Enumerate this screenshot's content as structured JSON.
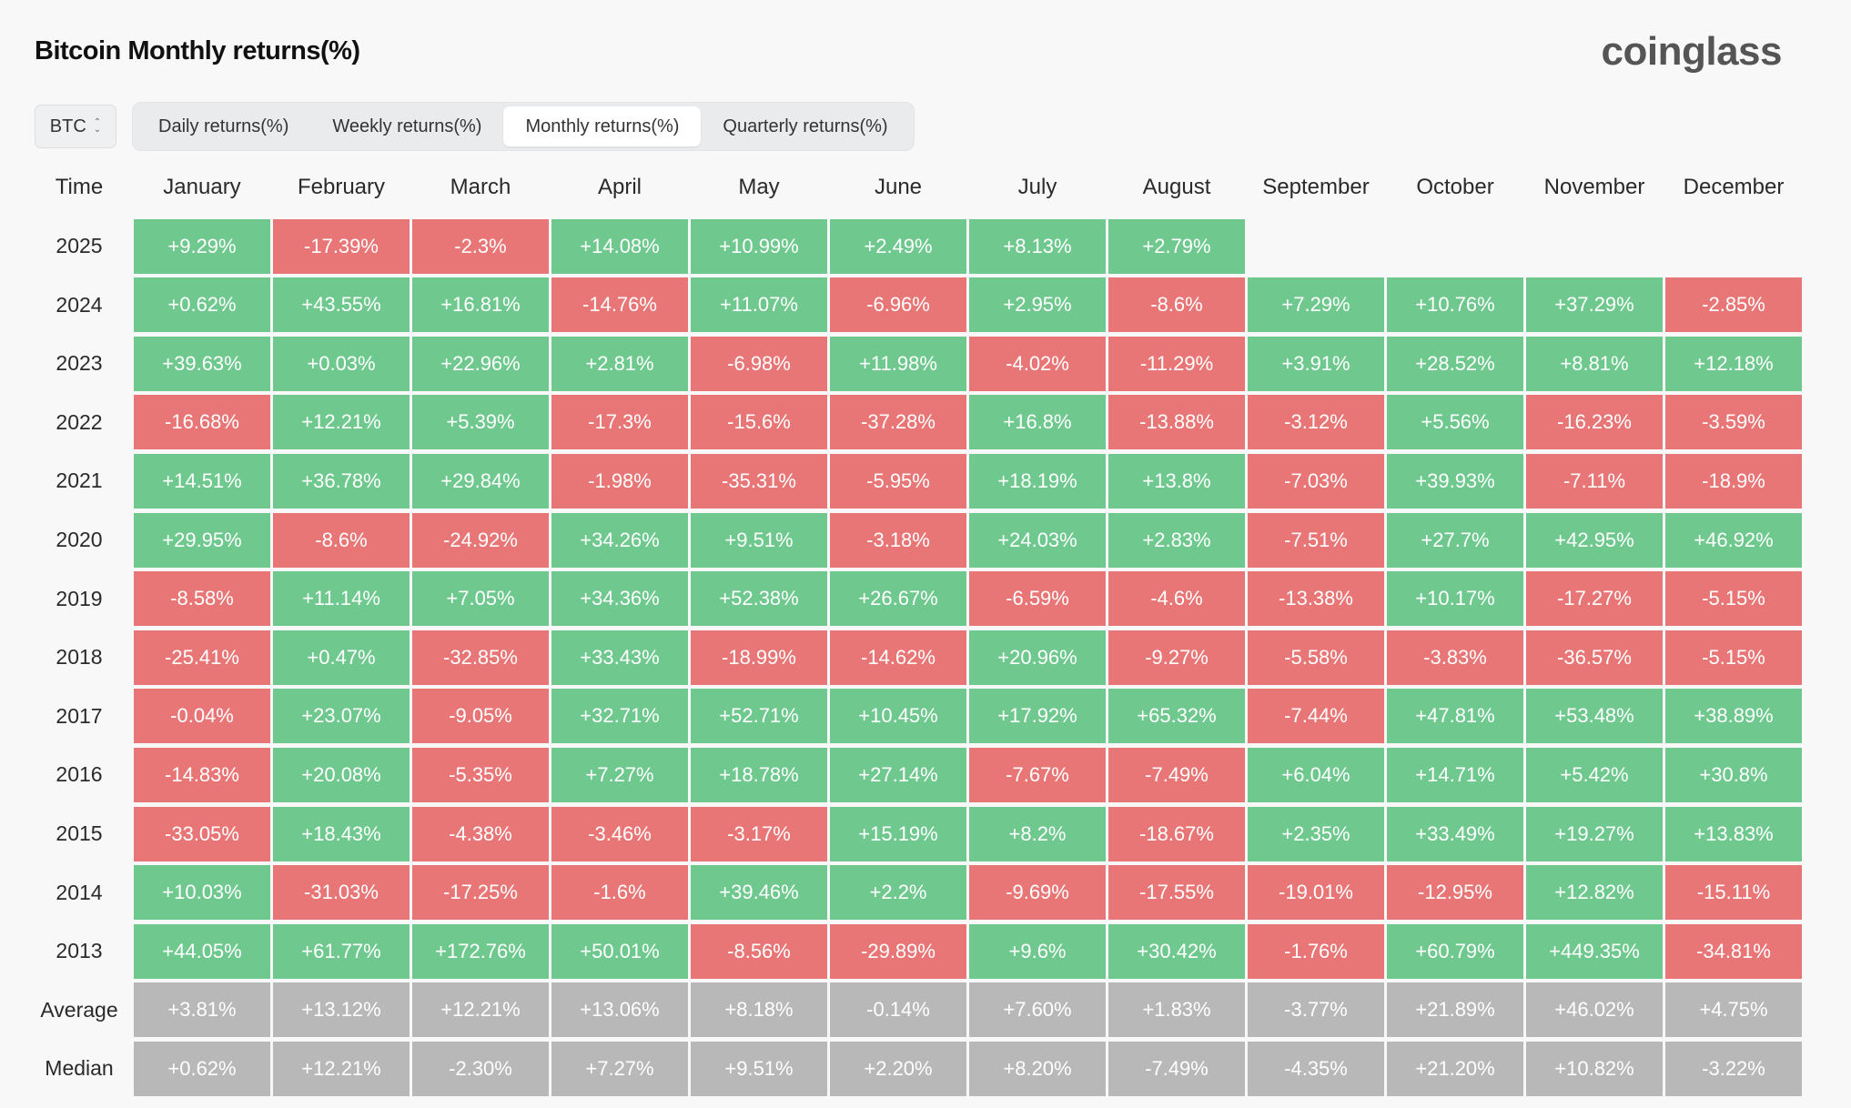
{
  "header": {
    "title": "Bitcoin Monthly returns(%)",
    "logo": "coinglass"
  },
  "asset_select": {
    "value": "BTC"
  },
  "tabs": [
    {
      "label": "Daily returns(%)",
      "active": false
    },
    {
      "label": "Weekly returns(%)",
      "active": false
    },
    {
      "label": "Monthly returns(%)",
      "active": true
    },
    {
      "label": "Quarterly returns(%)",
      "active": false
    }
  ],
  "colors": {
    "positive": "#6fc98f",
    "negative": "#e87676",
    "summary": "#b8b8b8"
  },
  "chart_data": {
    "type": "table",
    "title": "Bitcoin Monthly returns(%)",
    "corner_label": "Time",
    "columns": [
      "January",
      "February",
      "March",
      "April",
      "May",
      "June",
      "July",
      "August",
      "September",
      "October",
      "November",
      "December"
    ],
    "rows": [
      {
        "label": "2025",
        "kind": "year",
        "values": [
          "+9.29%",
          "-17.39%",
          "-2.3%",
          "+14.08%",
          "+10.99%",
          "+2.49%",
          "+8.13%",
          "+2.79%",
          "",
          "",
          "",
          ""
        ]
      },
      {
        "label": "2024",
        "kind": "year",
        "values": [
          "+0.62%",
          "+43.55%",
          "+16.81%",
          "-14.76%",
          "+11.07%",
          "-6.96%",
          "+2.95%",
          "-8.6%",
          "+7.29%",
          "+10.76%",
          "+37.29%",
          "-2.85%"
        ]
      },
      {
        "label": "2023",
        "kind": "year",
        "values": [
          "+39.63%",
          "+0.03%",
          "+22.96%",
          "+2.81%",
          "-6.98%",
          "+11.98%",
          "-4.02%",
          "-11.29%",
          "+3.91%",
          "+28.52%",
          "+8.81%",
          "+12.18%"
        ]
      },
      {
        "label": "2022",
        "kind": "year",
        "values": [
          "-16.68%",
          "+12.21%",
          "+5.39%",
          "-17.3%",
          "-15.6%",
          "-37.28%",
          "+16.8%",
          "-13.88%",
          "-3.12%",
          "+5.56%",
          "-16.23%",
          "-3.59%"
        ]
      },
      {
        "label": "2021",
        "kind": "year",
        "values": [
          "+14.51%",
          "+36.78%",
          "+29.84%",
          "-1.98%",
          "-35.31%",
          "-5.95%",
          "+18.19%",
          "+13.8%",
          "-7.03%",
          "+39.93%",
          "-7.11%",
          "-18.9%"
        ]
      },
      {
        "label": "2020",
        "kind": "year",
        "values": [
          "+29.95%",
          "-8.6%",
          "-24.92%",
          "+34.26%",
          "+9.51%",
          "-3.18%",
          "+24.03%",
          "+2.83%",
          "-7.51%",
          "+27.7%",
          "+42.95%",
          "+46.92%"
        ]
      },
      {
        "label": "2019",
        "kind": "year",
        "values": [
          "-8.58%",
          "+11.14%",
          "+7.05%",
          "+34.36%",
          "+52.38%",
          "+26.67%",
          "-6.59%",
          "-4.6%",
          "-13.38%",
          "+10.17%",
          "-17.27%",
          "-5.15%"
        ]
      },
      {
        "label": "2018",
        "kind": "year",
        "values": [
          "-25.41%",
          "+0.47%",
          "-32.85%",
          "+33.43%",
          "-18.99%",
          "-14.62%",
          "+20.96%",
          "-9.27%",
          "-5.58%",
          "-3.83%",
          "-36.57%",
          "-5.15%"
        ]
      },
      {
        "label": "2017",
        "kind": "year",
        "values": [
          "-0.04%",
          "+23.07%",
          "-9.05%",
          "+32.71%",
          "+52.71%",
          "+10.45%",
          "+17.92%",
          "+65.32%",
          "-7.44%",
          "+47.81%",
          "+53.48%",
          "+38.89%"
        ]
      },
      {
        "label": "2016",
        "kind": "year",
        "values": [
          "-14.83%",
          "+20.08%",
          "-5.35%",
          "+7.27%",
          "+18.78%",
          "+27.14%",
          "-7.67%",
          "-7.49%",
          "+6.04%",
          "+14.71%",
          "+5.42%",
          "+30.8%"
        ]
      },
      {
        "label": "2015",
        "kind": "year",
        "values": [
          "-33.05%",
          "+18.43%",
          "-4.38%",
          "-3.46%",
          "-3.17%",
          "+15.19%",
          "+8.2%",
          "-18.67%",
          "+2.35%",
          "+33.49%",
          "+19.27%",
          "+13.83%"
        ]
      },
      {
        "label": "2014",
        "kind": "year",
        "values": [
          "+10.03%",
          "-31.03%",
          "-17.25%",
          "-1.6%",
          "+39.46%",
          "+2.2%",
          "-9.69%",
          "-17.55%",
          "-19.01%",
          "-12.95%",
          "+12.82%",
          "-15.11%"
        ]
      },
      {
        "label": "2013",
        "kind": "year",
        "values": [
          "+44.05%",
          "+61.77%",
          "+172.76%",
          "+50.01%",
          "-8.56%",
          "-29.89%",
          "+9.6%",
          "+30.42%",
          "-1.76%",
          "+60.79%",
          "+449.35%",
          "-34.81%"
        ]
      },
      {
        "label": "Average",
        "kind": "summary",
        "values": [
          "+3.81%",
          "+13.12%",
          "+12.21%",
          "+13.06%",
          "+8.18%",
          "-0.14%",
          "+7.60%",
          "+1.83%",
          "-3.77%",
          "+21.89%",
          "+46.02%",
          "+4.75%"
        ]
      },
      {
        "label": "Median",
        "kind": "summary",
        "values": [
          "+0.62%",
          "+12.21%",
          "-2.30%",
          "+7.27%",
          "+9.51%",
          "+2.20%",
          "+8.20%",
          "-7.49%",
          "-4.35%",
          "+21.20%",
          "+10.82%",
          "-3.22%"
        ]
      }
    ]
  }
}
